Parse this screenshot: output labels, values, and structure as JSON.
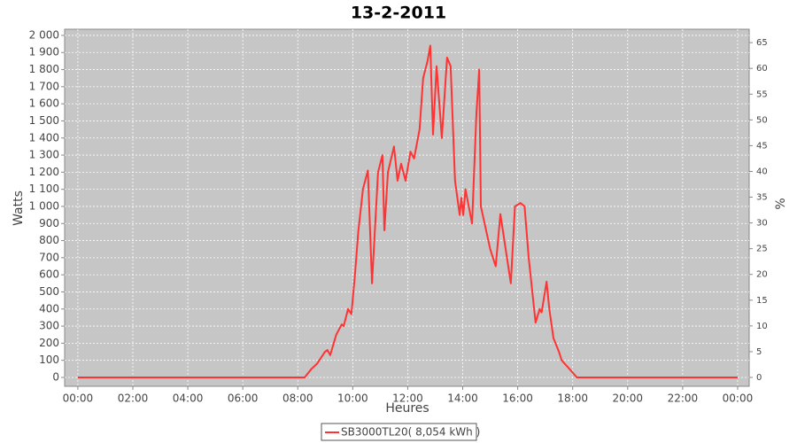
{
  "chart_data": {
    "type": "line",
    "title": "13-2-2011",
    "x_label": "Heures",
    "y_label": "Watts",
    "y2_label": "%",
    "xlim": [
      -0.48,
      24.42
    ],
    "xticks": [
      {
        "value": 0,
        "label": "00:00"
      },
      {
        "value": 2,
        "label": "02:00"
      },
      {
        "value": 4,
        "label": "04:00"
      },
      {
        "value": 6,
        "label": "06:00"
      },
      {
        "value": 8,
        "label": "08:00"
      },
      {
        "value": 10,
        "label": "10:00"
      },
      {
        "value": 12,
        "label": "12:00"
      },
      {
        "value": 14,
        "label": "14:00"
      },
      {
        "value": 16,
        "label": "16:00"
      },
      {
        "value": 18,
        "label": "18:00"
      },
      {
        "value": 20,
        "label": "20:00"
      },
      {
        "value": 22,
        "label": "22:00"
      },
      {
        "value": 24,
        "label": "00:00"
      }
    ],
    "ylim": [
      -52,
      2036
    ],
    "yticks": [
      0,
      100,
      200,
      300,
      400,
      500,
      600,
      700,
      800,
      900,
      {
        "value": 1000,
        "label": "1 000"
      },
      {
        "value": 1100,
        "label": "1 100"
      },
      {
        "value": 1200,
        "label": "1 200"
      },
      {
        "value": 1300,
        "label": "1 300"
      },
      {
        "value": 1400,
        "label": "1 400"
      },
      {
        "value": 1500,
        "label": "1 500"
      },
      {
        "value": 1600,
        "label": "1 600"
      },
      {
        "value": 1700,
        "label": "1 700"
      },
      {
        "value": 1800,
        "label": "1 800"
      },
      {
        "value": 1900,
        "label": "1 900"
      },
      {
        "value": 2000,
        "label": "2 000"
      }
    ],
    "y2lim": [
      -1.72,
      67.6
    ],
    "y2ticks": [
      0,
      5,
      10,
      15,
      20,
      25,
      30,
      35,
      40,
      45,
      50,
      55,
      60,
      65
    ],
    "grid": true,
    "x": [
      0,
      8.25,
      8.5,
      8.7,
      8.99,
      9.08,
      9.18,
      9.4,
      9.6,
      9.67,
      9.83,
      9.95,
      10.08,
      10.2,
      10.37,
      10.55,
      10.7,
      10.92,
      11.08,
      11.15,
      11.28,
      11.5,
      11.63,
      11.76,
      11.92,
      12.1,
      12.23,
      12.43,
      12.56,
      12.72,
      12.82,
      12.92,
      13.05,
      13.24,
      13.43,
      13.56,
      13.72,
      13.89,
      13.95,
      14.02,
      14.1,
      14.34,
      14.5,
      14.6,
      14.66,
      15.0,
      15.2,
      15.37,
      15.75,
      15.9,
      16.1,
      16.25,
      16.4,
      16.65,
      16.8,
      16.87,
      17.05,
      17.15,
      17.3,
      17.5,
      17.6,
      17.88,
      18.15,
      24
    ],
    "series": [
      {
        "name": "SB3000TL20( 8,054 kWh )",
        "color": "#ff3333",
        "values": [
          0,
          0,
          50,
          80,
          150,
          160,
          130,
          250,
          310,
          300,
          400,
          370,
          600,
          850,
          1100,
          1210,
          550,
          1200,
          1300,
          860,
          1200,
          1350,
          1150,
          1250,
          1150,
          1320,
          1280,
          1450,
          1750,
          1850,
          1940,
          1420,
          1820,
          1400,
          1870,
          1820,
          1150,
          950,
          1050,
          950,
          1100,
          900,
          1550,
          1800,
          1000,
          750,
          650,
          955,
          550,
          1000,
          1020,
          1000,
          700,
          320,
          400,
          380,
          560,
          400,
          230,
          150,
          100,
          50,
          0,
          0
        ]
      }
    ]
  }
}
